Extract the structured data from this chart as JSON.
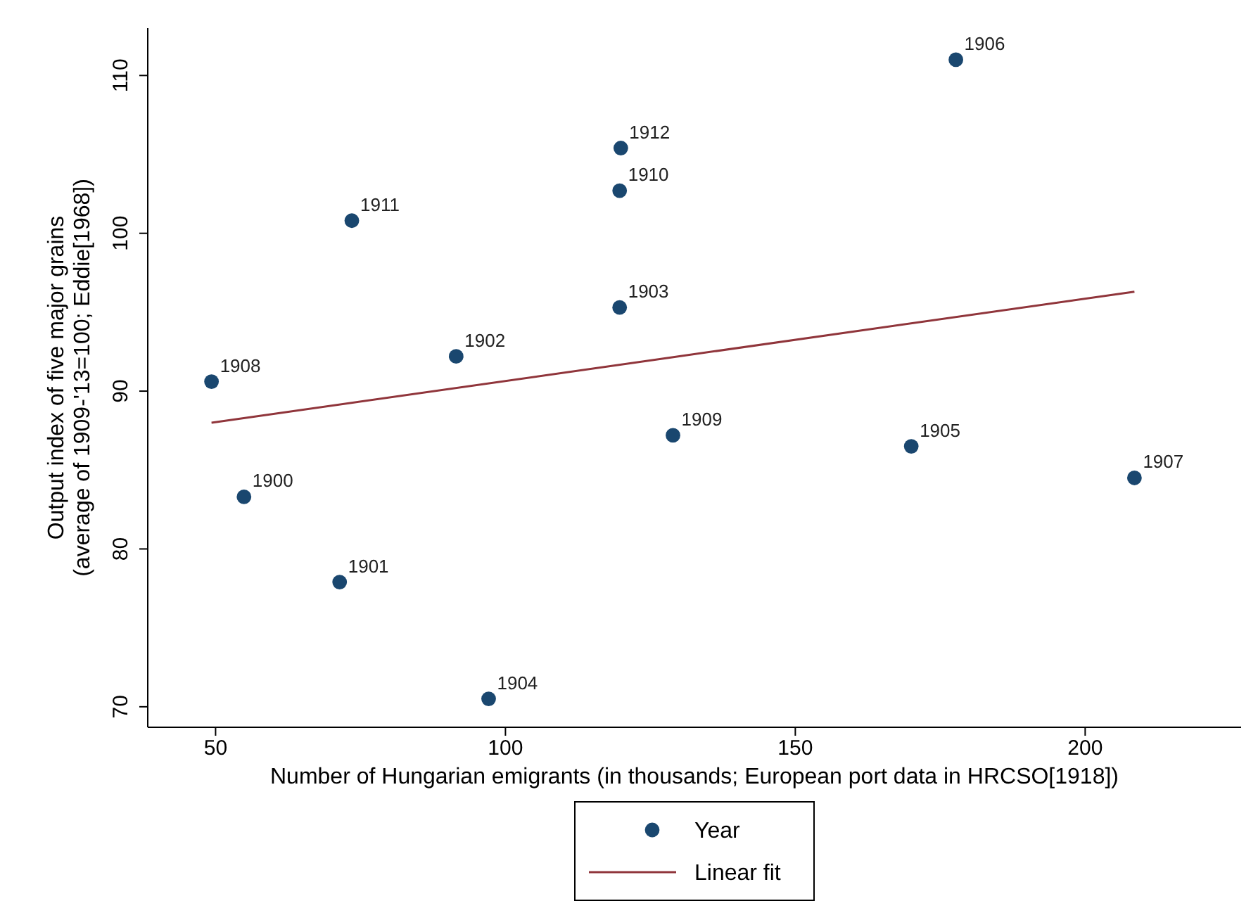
{
  "chart_data": {
    "type": "scatter",
    "xlabel": "Number of Hungarian emigrants (in thousands; European port data in HRCSO[1918])",
    "ylabel": "Output index of five major grains\n(average of 1909-'13=100; Eddie[1968])",
    "xlim": [
      38.3,
      226.9
    ],
    "ylim": [
      68.7,
      113
    ],
    "xticks": [
      50,
      100,
      150,
      200
    ],
    "yticks": [
      70,
      80,
      90,
      100,
      110
    ],
    "grid": false,
    "legend": "bottom",
    "annotations": [
      {
        "text": "1908",
        "x": 49.3,
        "y": 90.6
      },
      {
        "text": "1900",
        "x": 54.9,
        "y": 83.3
      },
      {
        "text": "1901",
        "x": 71.4,
        "y": 77.9
      },
      {
        "text": "1911",
        "x": 73.5,
        "y": 100.8
      },
      {
        "text": "1902",
        "x": 91.5,
        "y": 92.2
      },
      {
        "text": "1904",
        "x": 97.1,
        "y": 70.5
      },
      {
        "text": "1912",
        "x": 119.9,
        "y": 105.4
      },
      {
        "text": "1910",
        "x": 119.7,
        "y": 102.7
      },
      {
        "text": "1903",
        "x": 119.7,
        "y": 95.3
      },
      {
        "text": "1909",
        "x": 128.9,
        "y": 87.2
      },
      {
        "text": "1905",
        "x": 170,
        "y": 86.5
      },
      {
        "text": "1906",
        "x": 177.7,
        "y": 111
      },
      {
        "text": "1907",
        "x": 208.5,
        "y": 84.5
      }
    ],
    "series": [
      {
        "name": "Year",
        "color": "#1a476f",
        "marker": "circle",
        "x": [
          49.3,
          54.9,
          71.4,
          73.5,
          91.5,
          97.1,
          119.9,
          119.7,
          119.7,
          128.9,
          170,
          177.7,
          208.5
        ],
        "values": [
          90.6,
          83.3,
          77.9,
          100.8,
          92.2,
          70.5,
          105.4,
          102.7,
          95.3,
          87.2,
          86.5,
          111,
          84.5
        ]
      },
      {
        "name": "Linear fit",
        "type": "line",
        "color": "#90353b",
        "line_style": "solid",
        "x": [
          49.3,
          208.5
        ],
        "values": [
          88.0,
          96.3
        ]
      }
    ]
  }
}
